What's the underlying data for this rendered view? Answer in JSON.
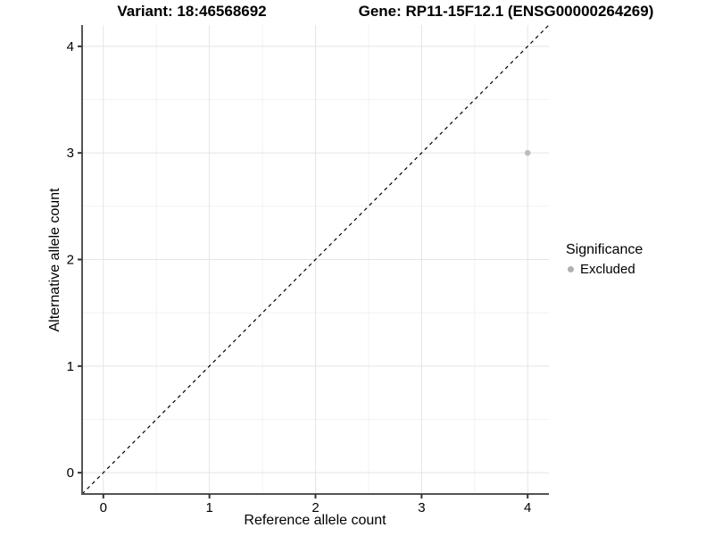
{
  "chart_data": {
    "type": "scatter",
    "title_left": "Variant: 18:46568692",
    "title_right": "Gene: RP11-15F12.1 (ENSG00000264269)",
    "xlabel": "Reference allele count",
    "ylabel": "Alternative allele count",
    "xlim": [
      -0.2,
      4.2
    ],
    "ylim": [
      -0.2,
      4.2
    ],
    "xticks": [
      0,
      1,
      2,
      3,
      4
    ],
    "yticks": [
      0,
      1,
      2,
      3,
      4
    ],
    "grid": {
      "major": true,
      "minor": true
    },
    "legend": {
      "title": "Significance",
      "position": "right",
      "items": [
        {
          "label": "Excluded",
          "color": "#b0b0b0"
        }
      ]
    },
    "series": [
      {
        "name": "Excluded",
        "color": "#bdbdbd",
        "points": [
          {
            "x": 4,
            "y": 3
          }
        ]
      }
    ],
    "reference_line": {
      "type": "identity",
      "style": "dashed",
      "color": "#000000"
    },
    "colors": {
      "background": "#ffffff",
      "grid_major": "#e4e4e4",
      "grid_minor": "#f2f2f2",
      "axis": "#555555",
      "tick": "#333333",
      "text": "#000000"
    }
  }
}
